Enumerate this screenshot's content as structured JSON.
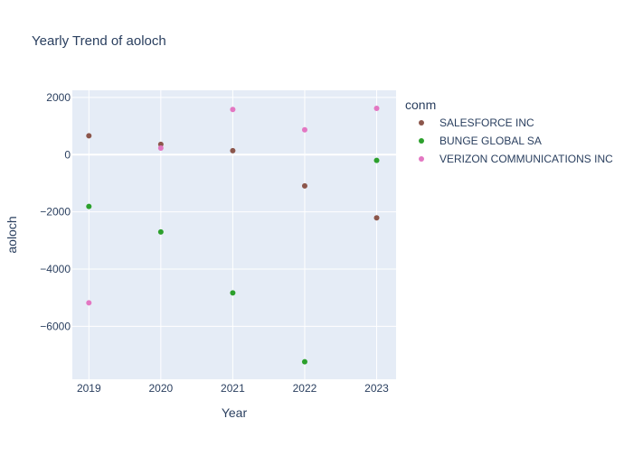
{
  "chart_data": {
    "type": "scatter",
    "title": "Yearly Trend of aoloch",
    "xlabel": "Year",
    "ylabel": "aoloch",
    "x": [
      2019,
      2020,
      2021,
      2022,
      2023
    ],
    "x_ticks": [
      "2019",
      "2020",
      "2021",
      "2022",
      "2023"
    ],
    "y_ticks": [
      2000,
      0,
      -2000,
      -4000,
      -6000
    ],
    "y_tick_labels": [
      "2000",
      "0",
      "−2000",
      "−4000",
      "−6000"
    ],
    "xlim": [
      2018.77,
      2023.27
    ],
    "ylim": [
      -7850,
      2250
    ],
    "grid": true,
    "legend_title": "conm",
    "legend_position": "right",
    "series": [
      {
        "name": "SALESFORCE INC",
        "color": "#8c564b",
        "values": [
          660,
          360,
          140,
          -1090,
          -2210
        ]
      },
      {
        "name": "BUNGE GLOBAL SA",
        "color": "#2ca02c",
        "values": [
          -1810,
          -2700,
          -4830,
          -7240,
          -200
        ]
      },
      {
        "name": "VERIZON COMMUNICATIONS INC",
        "color": "#e377c2",
        "values": [
          -5180,
          230,
          1580,
          870,
          1620
        ]
      }
    ]
  }
}
